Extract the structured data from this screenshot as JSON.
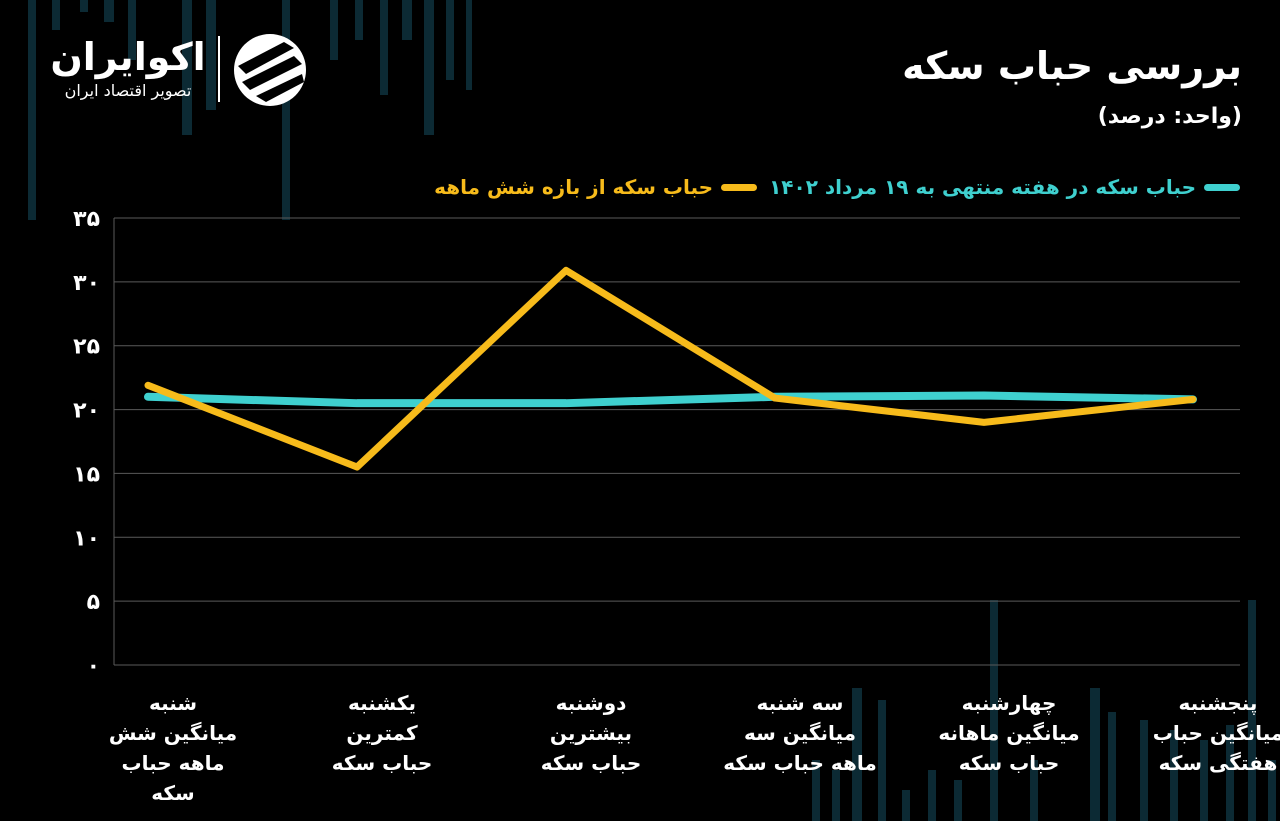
{
  "brand": {
    "name": "اکوایران",
    "tagline": "تصویر اقتصاد ایران",
    "logo_icon": "ecoiran-logo-icon"
  },
  "header": {
    "title": "بررسی حباب سکه",
    "unit": "(واحد: درصد)"
  },
  "colors": {
    "background": "#000000",
    "series_weekly": "#3fd0cf",
    "series_six_month": "#f7bb1b",
    "grid": "#5a5a5a",
    "decor_bars": "#0c2a34"
  },
  "chart_data": {
    "type": "line",
    "categories": [
      "شنبه\nمیانگین شش\nماهه حباب\nسکه",
      "یکشنبه\nکمترین\nحباب سکه",
      "دوشنبه\nبیشترین\nحباب سکه",
      "سه شنبه\nمیانگین سه\nماهه حباب سکه",
      "چهارشنبه\nمیانگین ماهانه\nحباب سکه",
      "پنجشنبه\nمیانگین حباب\nهفتگی سکه"
    ],
    "series": [
      {
        "name": "حباب سکه  در هفته  منتهی به ۱۹ مرداد ۱۴۰۲",
        "color": "#3fd0cf",
        "values": [
          21.0,
          20.5,
          20.5,
          21.0,
          21.1,
          20.8
        ]
      },
      {
        "name": "حباب سکه از بازه شش ماهه",
        "color": "#f7bb1b",
        "values": [
          21.9,
          15.5,
          30.9,
          20.9,
          19.0,
          20.8
        ]
      }
    ],
    "ylim": [
      0,
      35
    ],
    "yticks": [
      0,
      5,
      10,
      15,
      20,
      25,
      30,
      35
    ],
    "ytick_labels": [
      "۰",
      "۵",
      "۱۰",
      "۱۵",
      "۲۰",
      "۲۵",
      "۳۰",
      "۳۵"
    ],
    "grid": true,
    "legend_position": "top-right",
    "title": "بررسی حباب سکه",
    "ylabel": "(واحد: درصد)",
    "xlabel": ""
  }
}
